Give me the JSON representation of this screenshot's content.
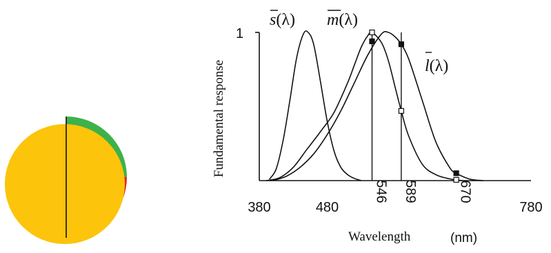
{
  "colors": {
    "yellow": "#FCC40A",
    "green": "#3DB24A",
    "red": "#E82126",
    "ink": "#111111"
  },
  "chart_data": {
    "type": "line",
    "xlabel": "Wavelength",
    "xlabel_unit": "(nm)",
    "ylabel": "Fundamental response",
    "xlim": [
      380,
      780
    ],
    "ylim": [
      0,
      1
    ],
    "y_ticks": [
      "1"
    ],
    "x_ticks": [
      {
        "value": 380,
        "label": "380",
        "rotated": false
      },
      {
        "value": 480,
        "label": "480",
        "rotated": false
      },
      {
        "value": 546,
        "label": "546",
        "rotated": true
      },
      {
        "value": 589,
        "label": "589",
        "rotated": true
      },
      {
        "value": 670,
        "label": "670",
        "rotated": true
      },
      {
        "value": 780,
        "label": "780",
        "rotated": false
      }
    ],
    "curve_labels": {
      "s": {
        "base": "s",
        "tail": "(λ)"
      },
      "m": {
        "base": "m",
        "tail": "(λ)"
      },
      "l": {
        "base": "l",
        "tail": "(λ)"
      }
    },
    "series": [
      {
        "key": "s",
        "x": [
          395,
          405,
          415,
          425,
          435,
          445,
          452,
          460,
          470,
          480,
          490,
          500,
          510,
          520,
          530
        ],
        "y": [
          0.01,
          0.08,
          0.27,
          0.54,
          0.83,
          0.99,
          1.0,
          0.92,
          0.67,
          0.4,
          0.2,
          0.09,
          0.04,
          0.015,
          0.0
        ]
      },
      {
        "key": "m",
        "x": [
          390,
          410,
          430,
          450,
          470,
          490,
          510,
          520,
          530,
          540,
          546,
          560,
          570,
          580,
          589,
          600,
          620,
          640,
          660,
          670,
          680
        ],
        "y": [
          0.0,
          0.02,
          0.09,
          0.21,
          0.33,
          0.46,
          0.66,
          0.78,
          0.9,
          0.98,
          1.0,
          0.93,
          0.81,
          0.63,
          0.47,
          0.3,
          0.11,
          0.04,
          0.012,
          0.005,
          0.0
        ]
      },
      {
        "key": "l",
        "x": [
          400,
          420,
          440,
          460,
          480,
          500,
          520,
          540,
          560,
          570,
          580,
          589,
          600,
          620,
          640,
          660,
          670,
          690,
          710
        ],
        "y": [
          0.0,
          0.03,
          0.09,
          0.18,
          0.31,
          0.47,
          0.66,
          0.85,
          0.99,
          1.0,
          0.97,
          0.92,
          0.82,
          0.54,
          0.26,
          0.09,
          0.05,
          0.01,
          0.0
        ]
      }
    ],
    "marker_lines": [
      546,
      589
    ],
    "markers": [
      {
        "x": 546,
        "y": 1.0,
        "style": "open"
      },
      {
        "x": 546,
        "y": 0.94,
        "style": "filled"
      },
      {
        "x": 589,
        "y": 0.92,
        "style": "filled"
      },
      {
        "x": 589,
        "y": 0.47,
        "style": "open"
      },
      {
        "x": 670,
        "y": 0.05,
        "style": "filled"
      },
      {
        "x": 670,
        "y": 0.005,
        "style": "open"
      }
    ]
  }
}
